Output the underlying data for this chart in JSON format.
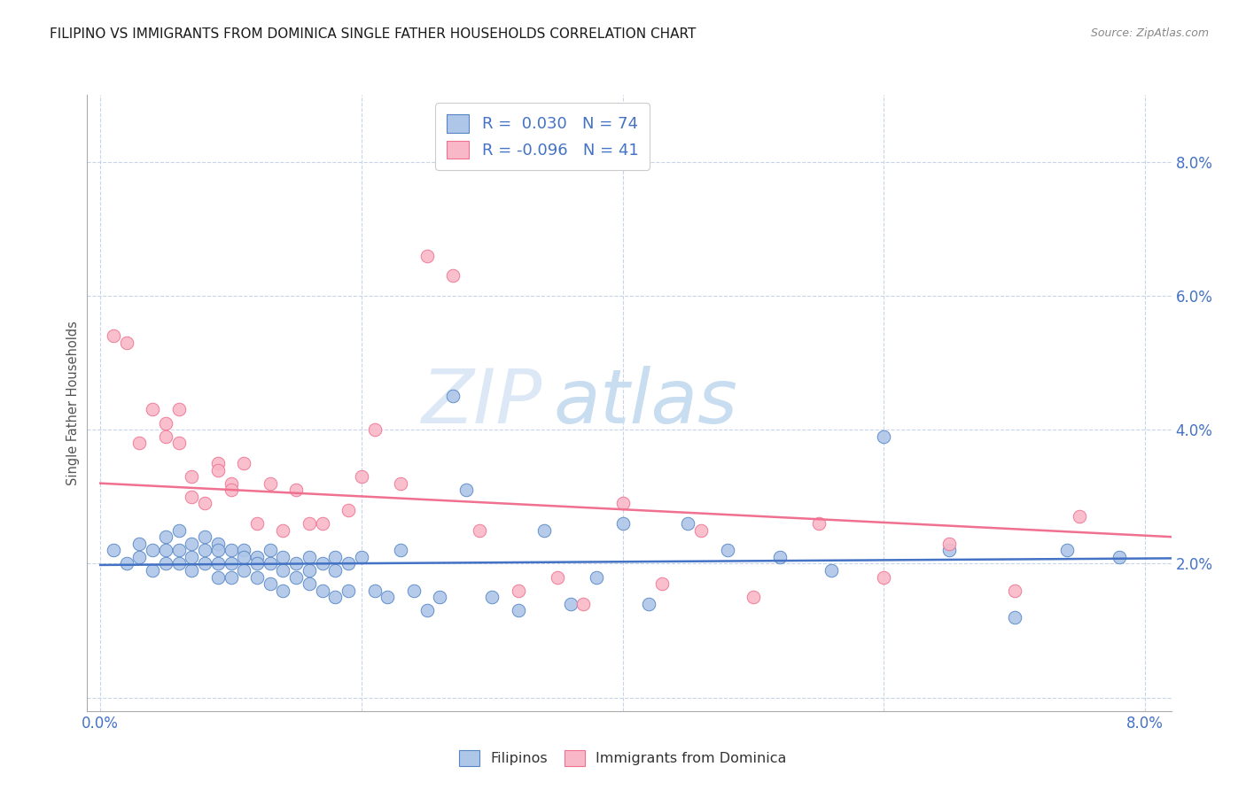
{
  "title": "FILIPINO VS IMMIGRANTS FROM DOMINICA SINGLE FATHER HOUSEHOLDS CORRELATION CHART",
  "source": "Source: ZipAtlas.com",
  "ylabel": "Single Father Households",
  "ytick_vals": [
    0.0,
    0.02,
    0.04,
    0.06,
    0.08
  ],
  "xtick_vals": [
    0.0,
    0.02,
    0.04,
    0.06,
    0.08
  ],
  "xlim": [
    -0.001,
    0.082
  ],
  "ylim": [
    -0.002,
    0.09
  ],
  "watermark_zip": "ZIP",
  "watermark_atlas": "atlas",
  "blue_fill": "#aec6e8",
  "pink_fill": "#f9b8c8",
  "blue_edge": "#5585c5",
  "pink_edge": "#f07090",
  "blue_trend": "#4472c4",
  "pink_trend": "#f07090",
  "title_color": "#1a1a1a",
  "axis_color": "#4472c4",
  "source_color": "#888888",
  "grid_color": "#c8d4e8",
  "legend_text_color": "#4472c4",
  "background_color": "#ffffff",
  "filipinos_x": [
    0.001,
    0.002,
    0.003,
    0.003,
    0.004,
    0.004,
    0.005,
    0.005,
    0.005,
    0.006,
    0.006,
    0.006,
    0.007,
    0.007,
    0.007,
    0.008,
    0.008,
    0.008,
    0.009,
    0.009,
    0.009,
    0.009,
    0.01,
    0.01,
    0.01,
    0.011,
    0.011,
    0.011,
    0.012,
    0.012,
    0.012,
    0.013,
    0.013,
    0.013,
    0.014,
    0.014,
    0.014,
    0.015,
    0.015,
    0.016,
    0.016,
    0.016,
    0.017,
    0.017,
    0.018,
    0.018,
    0.018,
    0.019,
    0.019,
    0.02,
    0.021,
    0.022,
    0.023,
    0.024,
    0.025,
    0.026,
    0.027,
    0.028,
    0.03,
    0.032,
    0.034,
    0.036,
    0.038,
    0.04,
    0.042,
    0.045,
    0.048,
    0.052,
    0.056,
    0.06,
    0.065,
    0.07,
    0.074,
    0.078
  ],
  "filipinos_y": [
    0.022,
    0.02,
    0.023,
    0.021,
    0.022,
    0.019,
    0.024,
    0.022,
    0.02,
    0.025,
    0.022,
    0.02,
    0.023,
    0.021,
    0.019,
    0.024,
    0.022,
    0.02,
    0.023,
    0.022,
    0.02,
    0.018,
    0.022,
    0.02,
    0.018,
    0.022,
    0.021,
    0.019,
    0.021,
    0.02,
    0.018,
    0.022,
    0.02,
    0.017,
    0.021,
    0.019,
    0.016,
    0.02,
    0.018,
    0.021,
    0.019,
    0.017,
    0.02,
    0.016,
    0.021,
    0.019,
    0.015,
    0.02,
    0.016,
    0.021,
    0.016,
    0.015,
    0.022,
    0.016,
    0.013,
    0.015,
    0.045,
    0.031,
    0.015,
    0.013,
    0.025,
    0.014,
    0.018,
    0.026,
    0.014,
    0.026,
    0.022,
    0.021,
    0.019,
    0.039,
    0.022,
    0.012,
    0.022,
    0.021
  ],
  "dominica_x": [
    0.001,
    0.002,
    0.003,
    0.004,
    0.005,
    0.005,
    0.006,
    0.006,
    0.007,
    0.007,
    0.008,
    0.009,
    0.009,
    0.01,
    0.01,
    0.011,
    0.012,
    0.013,
    0.014,
    0.015,
    0.016,
    0.017,
    0.019,
    0.02,
    0.021,
    0.023,
    0.025,
    0.027,
    0.029,
    0.032,
    0.035,
    0.037,
    0.04,
    0.043,
    0.046,
    0.05,
    0.055,
    0.06,
    0.065,
    0.07,
    0.075
  ],
  "dominica_y": [
    0.054,
    0.053,
    0.038,
    0.043,
    0.041,
    0.039,
    0.043,
    0.038,
    0.033,
    0.03,
    0.029,
    0.035,
    0.034,
    0.032,
    0.031,
    0.035,
    0.026,
    0.032,
    0.025,
    0.031,
    0.026,
    0.026,
    0.028,
    0.033,
    0.04,
    0.032,
    0.066,
    0.063,
    0.025,
    0.016,
    0.018,
    0.014,
    0.029,
    0.017,
    0.025,
    0.015,
    0.026,
    0.018,
    0.023,
    0.016,
    0.027
  ],
  "filipinos_trend_x": [
    0.0,
    0.082
  ],
  "filipinos_trend_y": [
    0.0198,
    0.0208
  ],
  "dominica_trend_x": [
    0.0,
    0.082
  ],
  "dominica_trend_y": [
    0.032,
    0.024
  ]
}
